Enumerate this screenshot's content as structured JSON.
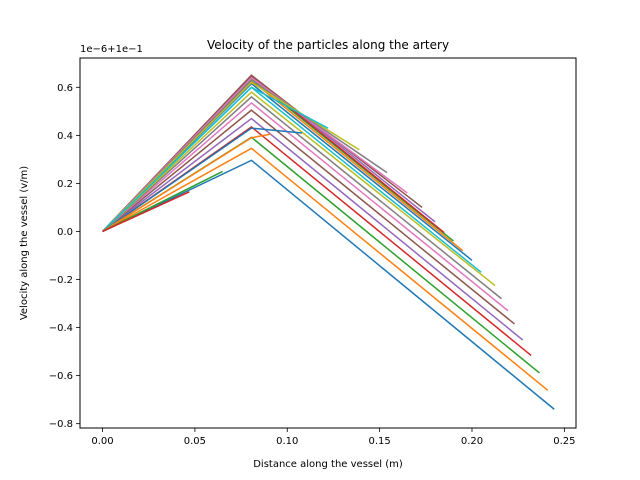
{
  "chart_data": {
    "type": "line",
    "title": "Velocity of the particles along the artery",
    "xlabel": "Distance along the vessel (m)",
    "ylabel": "Velocity along the vessel (v/m)",
    "y_offset_text": "1e−6+1e−1",
    "xlim": [
      -0.0122,
      0.2563
    ],
    "ylim": [
      -0.818,
      0.722
    ],
    "x_ticks": [
      0.0,
      0.05,
      0.1,
      0.15,
      0.2,
      0.25
    ],
    "x_tick_labels": [
      "0.00",
      "0.05",
      "0.10",
      "0.15",
      "0.20",
      "0.25"
    ],
    "y_ticks": [
      -0.8,
      -0.6,
      -0.4,
      -0.2,
      0.0,
      0.2,
      0.4,
      0.6
    ],
    "y_tick_labels": [
      "−0.8",
      "−0.6",
      "−0.4",
      "−0.2",
      "0.0",
      "0.2",
      "0.4",
      "0.6"
    ],
    "grid": false,
    "legend": "none",
    "colors": [
      "#1f77b4",
      "#ff7f0e",
      "#2ca02c",
      "#d62728",
      "#9467bd",
      "#8c564b",
      "#e377c2",
      "#7f7f7f",
      "#bcbd22",
      "#17becf"
    ],
    "series": [
      {
        "x": [
          0.0,
          0.0806,
          0.2445
        ],
        "y": [
          0.0,
          0.296,
          -0.74
        ]
      },
      {
        "x": [
          0.0,
          0.0806,
          0.241
        ],
        "y": [
          0.0,
          0.346,
          -0.661
        ]
      },
      {
        "x": [
          0.0,
          0.0806,
          0.2365
        ],
        "y": [
          0.0,
          0.392,
          -0.589
        ]
      },
      {
        "x": [
          0.0,
          0.0806,
          0.232
        ],
        "y": [
          0.0,
          0.435,
          -0.516
        ]
      },
      {
        "x": [
          0.0,
          0.0806,
          0.2275
        ],
        "y": [
          0.0,
          0.47,
          -0.452
        ]
      },
      {
        "x": [
          0.0,
          0.0806,
          0.223
        ],
        "y": [
          0.0,
          0.505,
          -0.385
        ]
      },
      {
        "x": [
          0.0,
          0.0806,
          0.2195
        ],
        "y": [
          0.0,
          0.535,
          -0.33
        ]
      },
      {
        "x": [
          0.0,
          0.0806,
          0.216
        ],
        "y": [
          0.0,
          0.56,
          -0.28
        ]
      },
      {
        "x": [
          0.0,
          0.0806,
          0.2125
        ],
        "y": [
          0.0,
          0.58,
          -0.225
        ]
      },
      {
        "x": [
          0.0,
          0.0806,
          0.205
        ],
        "y": [
          0.0,
          0.6,
          -0.17
        ]
      },
      {
        "x": [
          0.0,
          0.0806,
          0.2
        ],
        "y": [
          0.0,
          0.615,
          -0.12
        ]
      },
      {
        "x": [
          0.0,
          0.0806,
          0.195
        ],
        "y": [
          0.0,
          0.628,
          -0.08
        ]
      },
      {
        "x": [
          0.0,
          0.0806,
          0.19
        ],
        "y": [
          0.0,
          0.638,
          -0.04
        ]
      },
      {
        "x": [
          0.0,
          0.0806,
          0.185
        ],
        "y": [
          0.0,
          0.645,
          -0.005
        ]
      },
      {
        "x": [
          0.0,
          0.0806,
          0.18
        ],
        "y": [
          0.0,
          0.65,
          0.04
        ]
      },
      {
        "x": [
          0.0,
          0.0806,
          0.173
        ],
        "y": [
          0.0,
          0.65,
          0.1
        ]
      },
      {
        "x": [
          0.0,
          0.0806,
          0.165
        ],
        "y": [
          0.0,
          0.64,
          0.16
        ]
      },
      {
        "x": [
          0.0,
          0.0806,
          0.154
        ],
        "y": [
          0.0,
          0.63,
          0.245
        ]
      },
      {
        "x": [
          0.0,
          0.0806,
          0.139
        ],
        "y": [
          0.0,
          0.62,
          0.34
        ]
      },
      {
        "x": [
          0.0,
          0.0806,
          0.122
        ],
        "y": [
          0.0,
          0.6,
          0.43
        ]
      },
      {
        "x": [
          0.0,
          0.0806,
          0.108
        ],
        "y": [
          0.0,
          0.43,
          0.41
        ]
      },
      {
        "x": [
          0.0,
          0.0806,
          0.091
        ],
        "y": [
          0.0,
          0.39,
          0.405
        ]
      },
      {
        "x": [
          0.0,
          0.065
        ],
        "y": [
          0.0,
          0.25
        ]
      },
      {
        "x": [
          0.0,
          0.047
        ],
        "y": [
          0.0,
          0.165
        ]
      }
    ]
  }
}
